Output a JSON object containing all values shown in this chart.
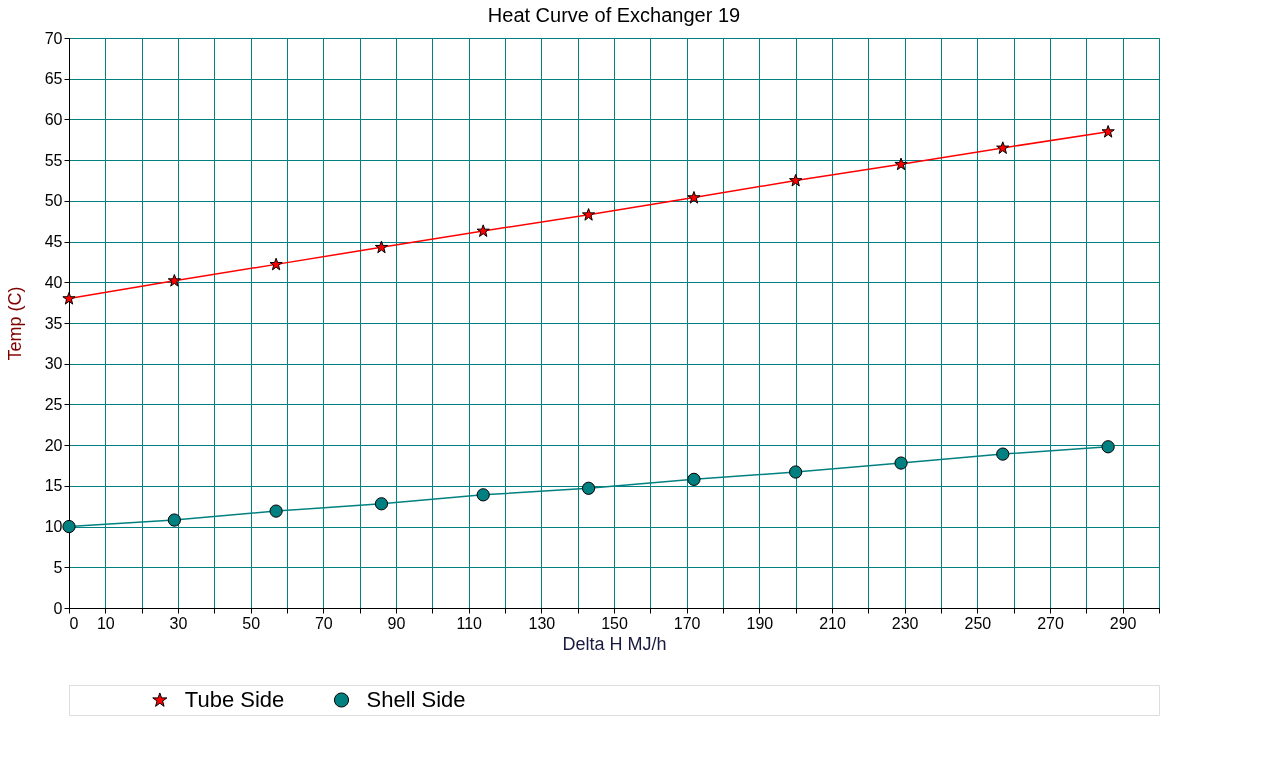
{
  "chart_data": {
    "type": "line",
    "title": "Heat Curve of Exchanger 19",
    "xlabel": "Delta H MJ/h",
    "ylabel": "Temp (C)",
    "x": [
      0,
      29,
      57,
      86,
      114,
      143,
      172,
      200,
      229,
      257,
      286
    ],
    "series": [
      {
        "name": "Tube Side",
        "color": "#ff0000",
        "marker": "star",
        "values": [
          38,
          40.2,
          42.2,
          44.3,
          46.3,
          48.3,
          50.4,
          52.5,
          54.5,
          56.5,
          58.5
        ]
      },
      {
        "name": "Shell Side",
        "color": "#008080",
        "marker": "circle",
        "values": [
          10,
          10.8,
          11.9,
          12.8,
          13.9,
          14.7,
          15.8,
          16.7,
          17.8,
          18.9,
          19.8
        ]
      }
    ],
    "xlim": [
      0,
      300
    ],
    "xticks": [
      0,
      10,
      {
        "value": 20,
        "label": null
      },
      30,
      {
        "value": 40,
        "label": null
      },
      50,
      {
        "value": 60,
        "label": null
      },
      70,
      {
        "value": 80,
        "label": null
      },
      90,
      {
        "value": 100,
        "label": null
      },
      110,
      {
        "value": 120,
        "label": null
      },
      130,
      {
        "value": 140,
        "label": null
      },
      150,
      {
        "value": 160,
        "label": null
      },
      170,
      {
        "value": 180,
        "label": null
      },
      190,
      {
        "value": 200,
        "label": null
      },
      210,
      {
        "value": 220,
        "label": null
      },
      230,
      {
        "value": 240,
        "label": null
      },
      250,
      {
        "value": 260,
        "label": null
      },
      270,
      {
        "value": 280,
        "label": null
      },
      290,
      {
        "value": 300,
        "label": null
      }
    ],
    "ylim": [
      0,
      70
    ],
    "yticks": [
      0,
      5,
      10,
      15,
      20,
      25,
      30,
      35,
      40,
      45,
      50,
      55,
      60,
      65,
      70
    ],
    "grid": true,
    "legend": "bottom",
    "line_style": "solid"
  }
}
